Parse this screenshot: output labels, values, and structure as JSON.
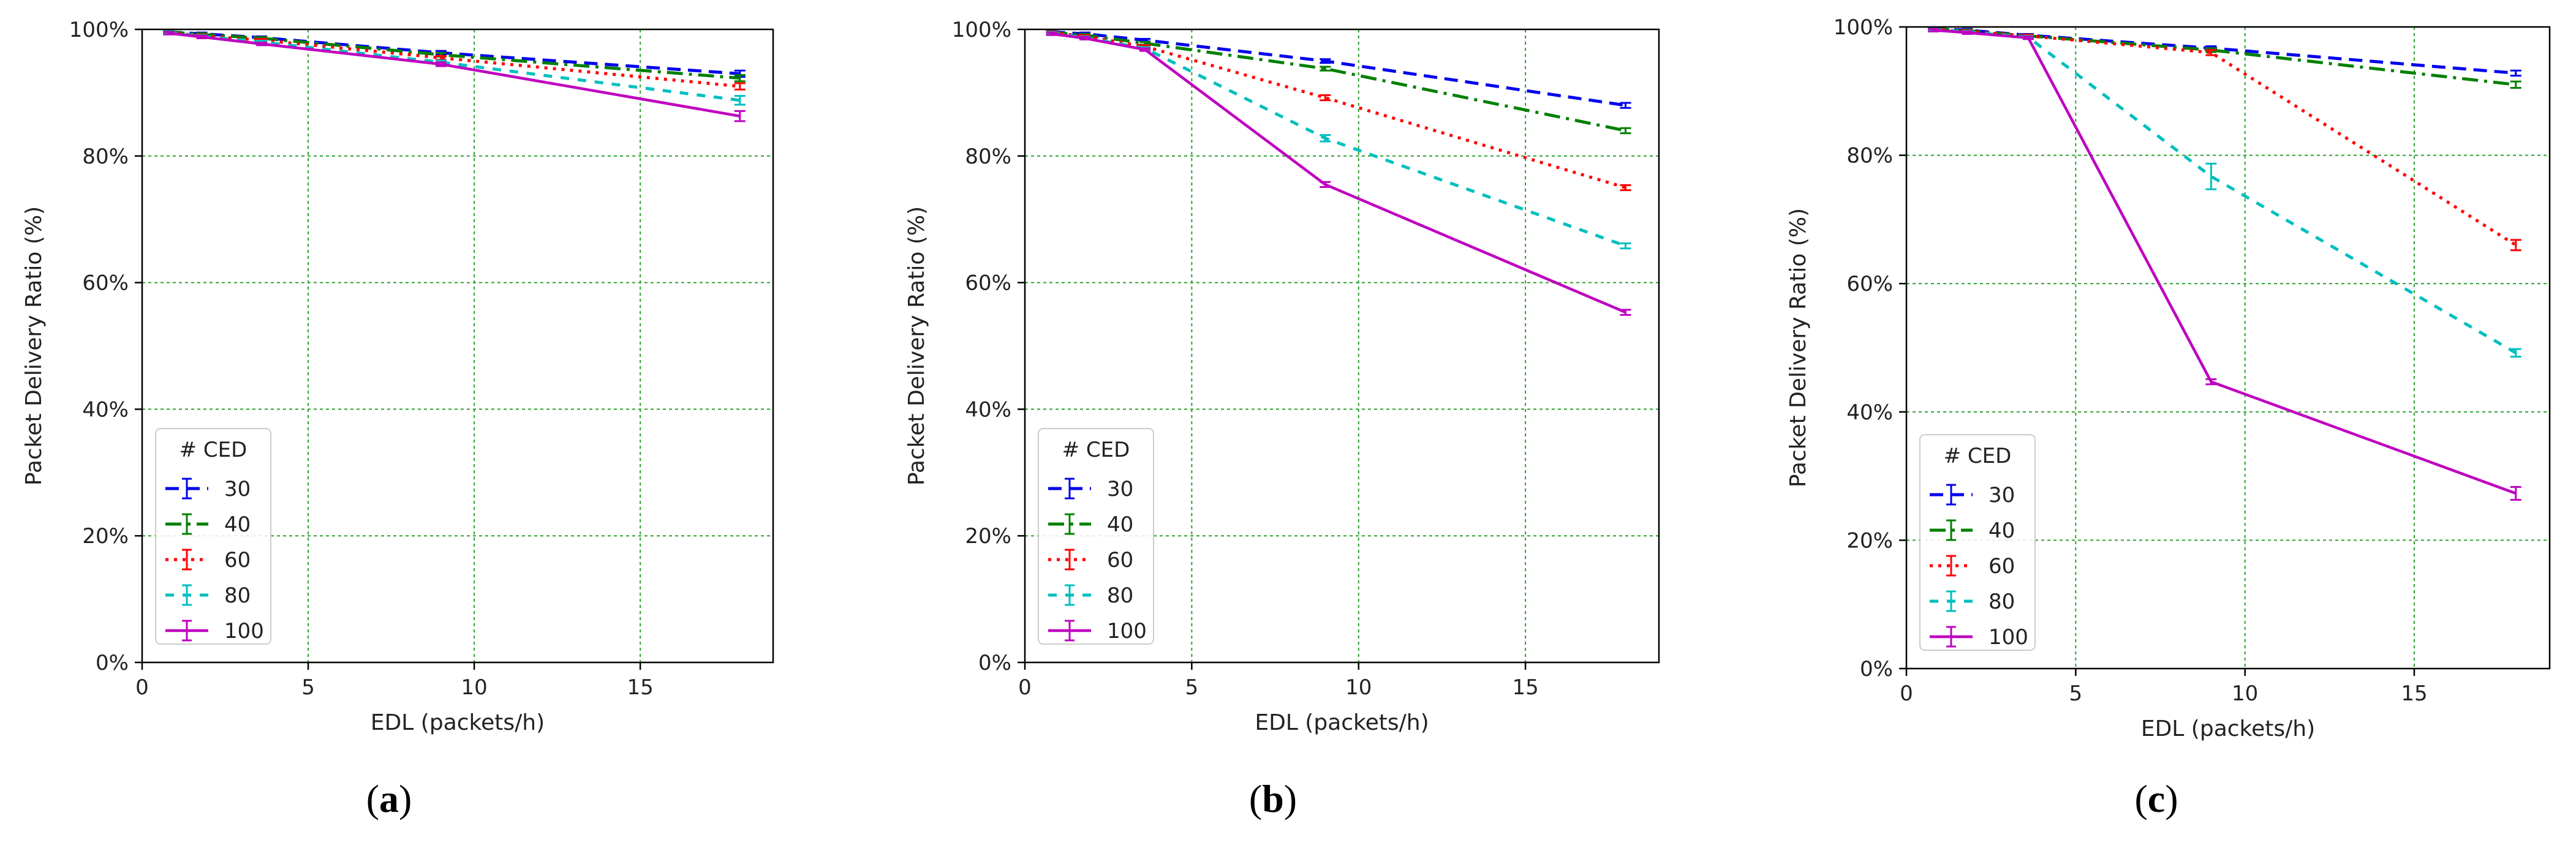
{
  "colors": {
    "30": "#0000ee",
    "40": "#008000",
    "60": "#ff0000",
    "80": "#00bfbf",
    "100": "#bf00bf",
    "grid": "#2ca02c"
  },
  "chart_data": [
    {
      "type": "line",
      "panel_label": "a",
      "xlabel": "EDL (packets/h)",
      "ylabel": "Packet Delivery Ratio (%)",
      "xlim": [
        0,
        19
      ],
      "ylim": [
        0,
        100
      ],
      "xticks": [
        0,
        5,
        10,
        15
      ],
      "xtick_labels": [
        "0",
        "5",
        "10",
        "15"
      ],
      "yticks": [
        0,
        20,
        40,
        60,
        80,
        100
      ],
      "ytick_labels": [
        "0%",
        "20%",
        "40%",
        "60%",
        "80%",
        "100%"
      ],
      "grid": true,
      "legend_title": "# CED",
      "legend_position": "lower-left",
      "x": [
        0.8,
        1.8,
        3.6,
        9,
        18
      ],
      "series": [
        {
          "name": "30",
          "values": [
            99.6,
            99.3,
            98.7,
            96.3,
            93.0
          ],
          "err": [
            0.2,
            0.2,
            0.2,
            0.3,
            0.5
          ]
        },
        {
          "name": "40",
          "values": [
            99.6,
            99.2,
            98.6,
            96.0,
            92.3
          ],
          "err": [
            0.2,
            0.2,
            0.2,
            0.3,
            0.5
          ]
        },
        {
          "name": "60",
          "values": [
            99.5,
            99.0,
            98.3,
            95.5,
            91.0
          ],
          "err": [
            0.2,
            0.2,
            0.2,
            0.3,
            0.5
          ]
        },
        {
          "name": "80",
          "values": [
            99.5,
            98.9,
            98.0,
            94.8,
            88.8
          ],
          "err": [
            0.2,
            0.2,
            0.2,
            0.3,
            0.7
          ]
        },
        {
          "name": "100",
          "values": [
            99.4,
            98.8,
            97.7,
            94.5,
            86.3
          ],
          "err": [
            0.2,
            0.2,
            0.2,
            0.3,
            0.8
          ]
        }
      ]
    },
    {
      "type": "line",
      "panel_label": "b",
      "xlabel": "EDL (packets/h)",
      "ylabel": "Packet Delivery Ratio (%)",
      "xlim": [
        0,
        19
      ],
      "ylim": [
        0,
        100
      ],
      "xticks": [
        0,
        5,
        10,
        15
      ],
      "xtick_labels": [
        "0",
        "5",
        "10",
        "15"
      ],
      "yticks": [
        0,
        20,
        40,
        60,
        80,
        100
      ],
      "ytick_labels": [
        "0%",
        "20%",
        "40%",
        "60%",
        "80%",
        "100%"
      ],
      "grid": true,
      "legend_title": "# CED",
      "legend_position": "lower-left",
      "x": [
        0.8,
        1.8,
        3.6,
        9,
        18
      ],
      "series": [
        {
          "name": "30",
          "values": [
            99.6,
            99.3,
            98.3,
            95.0,
            88.0
          ],
          "err": [
            0.2,
            0.2,
            0.2,
            0.3,
            0.4
          ]
        },
        {
          "name": "40",
          "values": [
            99.5,
            99.1,
            97.8,
            93.8,
            84.0
          ],
          "err": [
            0.2,
            0.2,
            0.2,
            0.3,
            0.4
          ]
        },
        {
          "name": "60",
          "values": [
            99.5,
            98.9,
            97.3,
            89.2,
            75.0
          ],
          "err": [
            0.2,
            0.2,
            0.2,
            0.4,
            0.4
          ]
        },
        {
          "name": "80",
          "values": [
            99.4,
            98.7,
            97.0,
            82.8,
            65.8
          ],
          "err": [
            0.2,
            0.2,
            0.2,
            0.5,
            0.4
          ]
        },
        {
          "name": "100",
          "values": [
            99.3,
            98.6,
            96.8,
            75.5,
            55.3
          ],
          "err": [
            0.2,
            0.2,
            0.2,
            0.4,
            0.4
          ]
        }
      ]
    },
    {
      "type": "line",
      "panel_label": "c",
      "xlabel": "EDL (packets/h)",
      "ylabel": "Packet Delivery Ratio (%)",
      "xlim": [
        0,
        19
      ],
      "ylim": [
        0,
        100
      ],
      "xticks": [
        0,
        5,
        10,
        15
      ],
      "xtick_labels": [
        "0",
        "5",
        "10",
        "15"
      ],
      "yticks": [
        0,
        20,
        40,
        60,
        80,
        100
      ],
      "ytick_labels": [
        "0%",
        "20%",
        "40%",
        "60%",
        "80%",
        "100%"
      ],
      "grid": true,
      "legend_title": "# CED",
      "legend_position": "lower-left",
      "x": [
        0.8,
        1.8,
        3.6,
        9,
        18
      ],
      "series": [
        {
          "name": "30",
          "values": [
            99.7,
            99.5,
            98.7,
            96.7,
            92.8
          ],
          "err": [
            0.2,
            0.2,
            0.2,
            0.3,
            0.4
          ]
        },
        {
          "name": "40",
          "values": [
            99.7,
            99.4,
            98.6,
            96.4,
            91.0
          ],
          "err": [
            0.2,
            0.2,
            0.2,
            0.3,
            0.5
          ]
        },
        {
          "name": "60",
          "values": [
            99.6,
            99.3,
            98.6,
            96.0,
            66.0
          ],
          "err": [
            0.2,
            0.2,
            0.2,
            0.4,
            0.8
          ]
        },
        {
          "name": "80",
          "values": [
            99.6,
            99.2,
            98.4,
            76.7,
            49.2
          ],
          "err": [
            0.2,
            0.2,
            0.2,
            2.0,
            0.6
          ]
        },
        {
          "name": "100",
          "values": [
            99.5,
            99.1,
            98.3,
            44.7,
            27.3
          ],
          "err": [
            0.2,
            0.2,
            0.2,
            0.4,
            1.0
          ]
        }
      ]
    }
  ]
}
